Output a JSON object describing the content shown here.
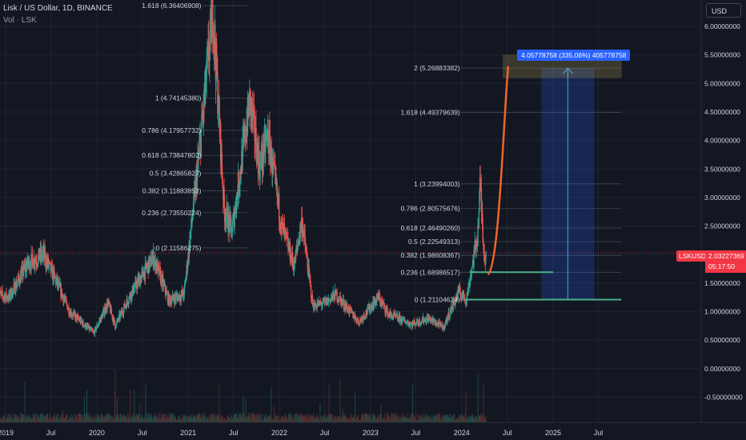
{
  "header": {
    "title": "Lisk / US Dollar, 1D, BINANCE",
    "volume_label": "Vol · LSK"
  },
  "toolbar": {
    "currency_label": "USD"
  },
  "price_tag": {
    "symbol": "LSKUSD",
    "price": "2.03227369",
    "countdown": "05:17:50"
  },
  "colors": {
    "background": "#131722",
    "up": "#26a69a",
    "down": "#ef5350",
    "projection_curve": "#f5642a",
    "fib_line": "#b2b5be",
    "box_fill": "#2962ff",
    "target_box": "#c8b458",
    "level_line": "#4caf8a",
    "price_tag": "#f23645"
  },
  "chart_data": {
    "type": "candlestick",
    "symbol": "LSKUSD",
    "timeframe": "1D",
    "exchange": "BINANCE",
    "ylim": [
      -0.5,
      6.3
    ],
    "y_ticks": [
      "6.00000000",
      "5.50000000",
      "5.00000000",
      "4.50000000",
      "4.00000000",
      "3.50000000",
      "3.00000000",
      "2.50000000",
      "2.00000000",
      "1.50000000",
      "1.00000000",
      "0.50000000",
      "0.00000000",
      "-0.50000000"
    ],
    "y_tick_values": [
      6.0,
      5.5,
      5.0,
      4.5,
      4.0,
      3.5,
      3.0,
      2.5,
      2.0,
      1.5,
      1.0,
      0.5,
      0.0,
      -0.5
    ],
    "x_ticks": [
      {
        "label": "2019",
        "date": "2019-01-01"
      },
      {
        "label": "Jul",
        "date": "2019-07-01"
      },
      {
        "label": "2020",
        "date": "2020-01-01"
      },
      {
        "label": "Jul",
        "date": "2020-07-01"
      },
      {
        "label": "2021",
        "date": "2021-01-01"
      },
      {
        "label": "Jul",
        "date": "2021-07-01"
      },
      {
        "label": "2022",
        "date": "2022-01-01"
      },
      {
        "label": "Jul",
        "date": "2022-07-01"
      },
      {
        "label": "2023",
        "date": "2023-01-01"
      },
      {
        "label": "Jul",
        "date": "2023-07-01"
      },
      {
        "label": "2024",
        "date": "2024-01-01"
      },
      {
        "label": "Jul",
        "date": "2024-07-01"
      },
      {
        "label": "2025",
        "date": "2025-01-01"
      },
      {
        "label": "Jul",
        "date": "2025-07-01"
      }
    ],
    "price_path": [
      {
        "date": "2018-12-01",
        "price": 1.3
      },
      {
        "date": "2019-01-15",
        "price": 1.25
      },
      {
        "date": "2019-04-01",
        "price": 1.85
      },
      {
        "date": "2019-06-01",
        "price": 2.0
      },
      {
        "date": "2019-07-15",
        "price": 1.6
      },
      {
        "date": "2019-09-15",
        "price": 1.0
      },
      {
        "date": "2019-12-20",
        "price": 0.62
      },
      {
        "date": "2020-02-15",
        "price": 1.15
      },
      {
        "date": "2020-03-15",
        "price": 0.75
      },
      {
        "date": "2020-05-15",
        "price": 1.3
      },
      {
        "date": "2020-08-15",
        "price": 1.95
      },
      {
        "date": "2020-10-15",
        "price": 1.2
      },
      {
        "date": "2020-12-15",
        "price": 1.3
      },
      {
        "date": "2021-02-15",
        "price": 3.8
      },
      {
        "date": "2021-04-10",
        "price": 6.3
      },
      {
        "date": "2021-05-25",
        "price": 2.8
      },
      {
        "date": "2021-06-25",
        "price": 2.4
      },
      {
        "date": "2021-09-05",
        "price": 4.7
      },
      {
        "date": "2021-10-15",
        "price": 3.5
      },
      {
        "date": "2021-11-15",
        "price": 4.1
      },
      {
        "date": "2022-01-10",
        "price": 2.5
      },
      {
        "date": "2022-03-01",
        "price": 1.8
      },
      {
        "date": "2022-04-01",
        "price": 2.6
      },
      {
        "date": "2022-05-15",
        "price": 1.1
      },
      {
        "date": "2022-07-01",
        "price": 1.15
      },
      {
        "date": "2022-08-15",
        "price": 1.3
      },
      {
        "date": "2022-11-15",
        "price": 0.82
      },
      {
        "date": "2023-02-01",
        "price": 1.25
      },
      {
        "date": "2023-03-15",
        "price": 0.95
      },
      {
        "date": "2023-06-15",
        "price": 0.78
      },
      {
        "date": "2023-08-20",
        "price": 0.88
      },
      {
        "date": "2023-10-20",
        "price": 0.72
      },
      {
        "date": "2023-12-20",
        "price": 1.35
      },
      {
        "date": "2024-01-20",
        "price": 1.22
      },
      {
        "date": "2024-03-05",
        "price": 2.35
      },
      {
        "date": "2024-03-15",
        "price": 3.24
      },
      {
        "date": "2024-04-01",
        "price": 1.95
      },
      {
        "date": "2024-04-08",
        "price": 2.03
      }
    ],
    "fib_first": {
      "start_date": "2021-03-01",
      "end_date": "2021-09-01",
      "levels": [
        {
          "label": "1.618 (6.36406908)",
          "price": 6.36406908
        },
        {
          "label": "1 (4.74145380)",
          "price": 4.7414538
        },
        {
          "label": "0.786 (4.17957732)",
          "price": 4.17957732
        },
        {
          "label": "0.618 (3.73847802)",
          "price": 3.73847802
        },
        {
          "label": "0.5 (3.42865827)",
          "price": 3.42865827
        },
        {
          "label": "0.382 (3.11883853)",
          "price": 3.11883853
        },
        {
          "label": "0.236 (2.73550224)",
          "price": 2.73550224
        },
        {
          "label": "0 (2.11586275)",
          "price": 2.11586275
        }
      ]
    },
    "fib_second": {
      "start_date": "2024-01-01",
      "end_date": "2025-10-01",
      "levels": [
        {
          "label": "2 (5.26883382)",
          "price": 5.26883382
        },
        {
          "label": "1.618 (4.49379639)",
          "price": 4.49379639
        },
        {
          "label": "1 (3.23994003)",
          "price": 3.23994003
        },
        {
          "label": "0.786 (2.80575676)",
          "price": 2.80575676
        },
        {
          "label": "0.618 (2.46490260)",
          "price": 2.4649026
        },
        {
          "label": "0.5 (2.22549313)",
          "price": 2.22549313
        },
        {
          "label": "0.382 (1.98608367)",
          "price": 1.98608367
        },
        {
          "label": "0.236 (1.68986517)",
          "price": 1.68986517
        },
        {
          "label": "0 (1.21104624)",
          "price": 1.21104624
        }
      ]
    },
    "long_position": {
      "start_date": "2024-11-15",
      "end_date": "2025-06-15",
      "entry": 1.21104624,
      "target": 5.26883382,
      "label": "4.05778758 (335.06%) 405778758"
    },
    "target_box": {
      "start_date": "2024-06-15",
      "end_date": "2025-10-01",
      "low": 5.1,
      "high": 5.5
    },
    "projection_curve": {
      "start_date": "2024-04-15",
      "start_price": 1.65,
      "end_date": "2024-07-05",
      "end_price": 5.3
    },
    "support_lines": [
      {
        "price": 1.69,
        "start_date": "2024-02-01",
        "end_date": "2025-01-01"
      },
      {
        "price": 1.21104624,
        "start_date": "2024-01-15",
        "end_date": "2025-10-01"
      }
    ],
    "current_price": 2.03227369
  }
}
